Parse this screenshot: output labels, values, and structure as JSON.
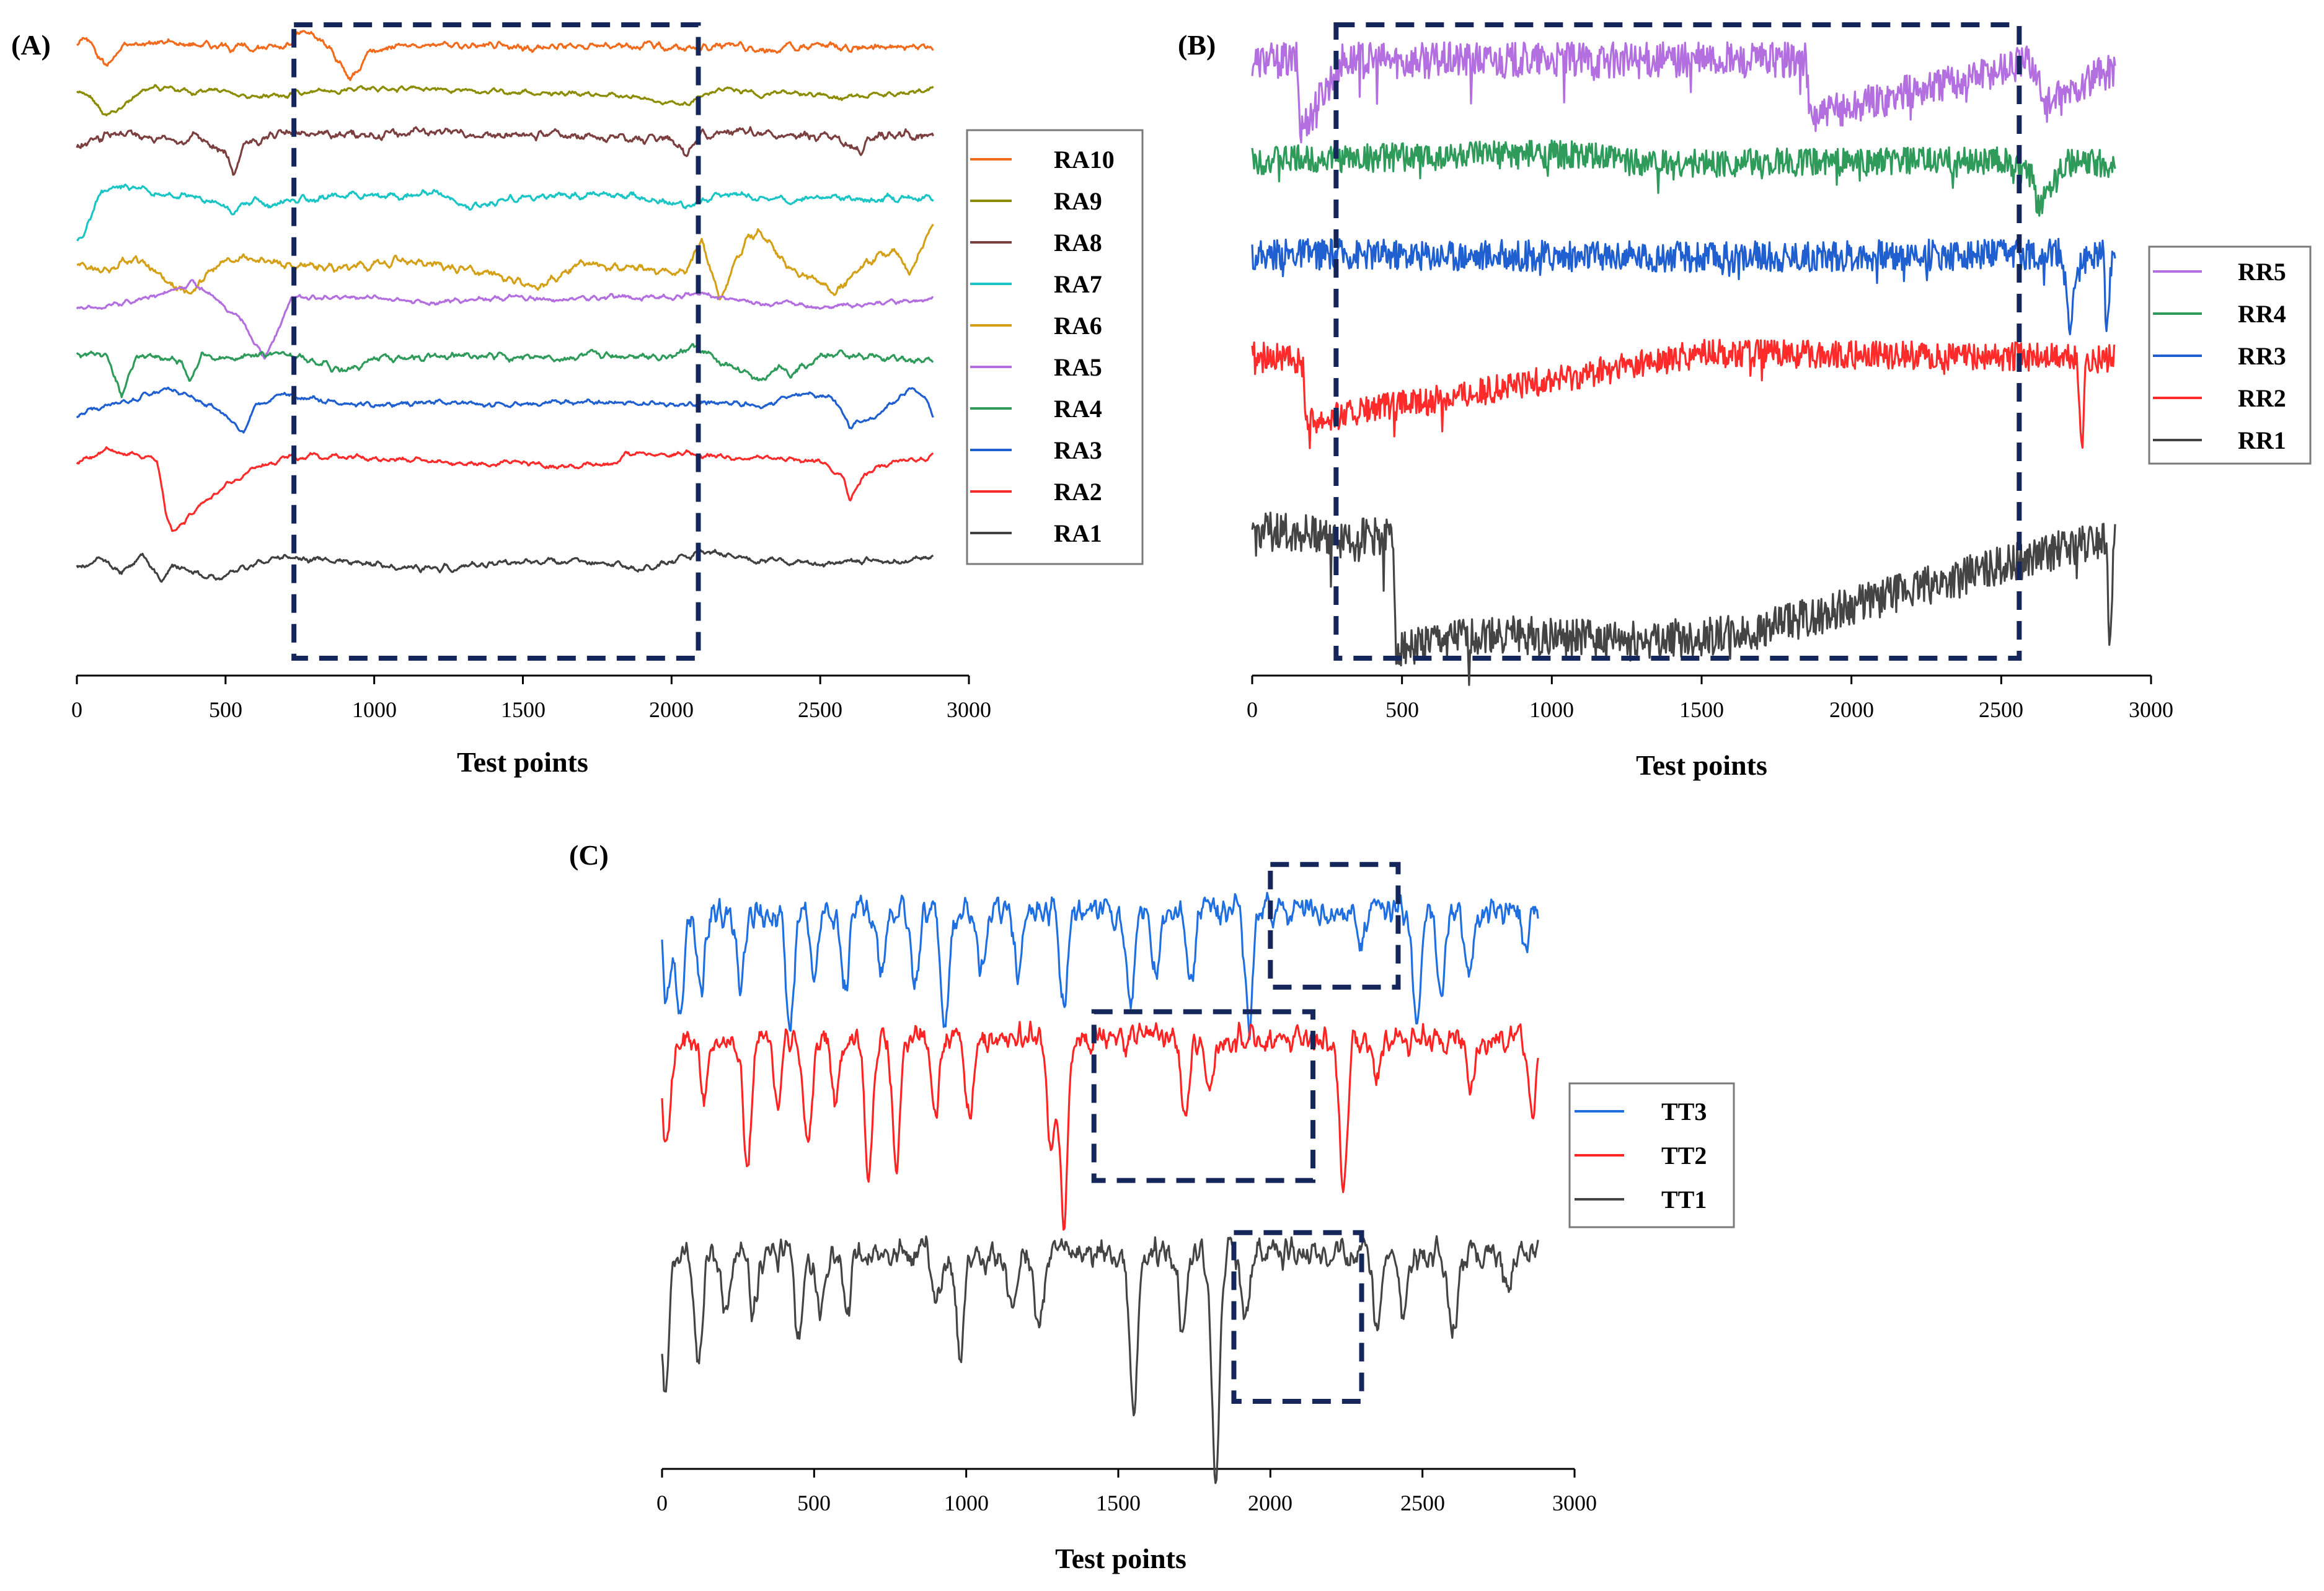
{
  "chart_data": [
    {
      "panel": "(A)",
      "type": "line",
      "xlabel": "Test points",
      "ylabel": "",
      "xlim": [
        0,
        3000
      ],
      "xticks": [
        "0",
        "500",
        "1000",
        "1500",
        "2000",
        "2500",
        "3000"
      ],
      "ylim": [
        -1,
        10
      ],
      "highlight_x": [
        730,
        2090
      ],
      "legend_position": "right",
      "legend": [
        "RA10",
        "RA9",
        "RA8",
        "RA7",
        "RA6",
        "RA5",
        "RA4",
        "RA3",
        "RA2",
        "RA1"
      ],
      "series": [
        {
          "name": "RA10",
          "color": "#f26b1d",
          "baseline": 9.6,
          "noise": 0.07,
          "x": [
            0,
            30,
            100,
            160,
            300,
            450,
            600,
            700,
            760,
            850,
            920,
            980,
            1100,
            1300,
            1500,
            1700,
            1900,
            2050,
            2100,
            2200,
            2300,
            2400,
            2500,
            2600,
            2700,
            2880
          ],
          "values": [
            9.6,
            9.75,
            9.25,
            9.6,
            9.65,
            9.6,
            9.55,
            9.6,
            9.85,
            9.55,
            9.0,
            9.5,
            9.6,
            9.6,
            9.55,
            9.6,
            9.6,
            9.55,
            9.55,
            9.6,
            9.5,
            9.55,
            9.6,
            9.55,
            9.6,
            9.55
          ]
        },
        {
          "name": "RA9",
          "color": "#8c8c00",
          "baseline": 8.85,
          "noise": 0.05,
          "x": [
            0,
            50,
            100,
            150,
            250,
            400,
            500,
            600,
            800,
            1000,
            1200,
            1500,
            1800,
            2050,
            2100,
            2200,
            2300,
            2400,
            2600,
            2880
          ],
          "values": [
            8.85,
            8.7,
            8.4,
            8.55,
            8.9,
            8.8,
            8.85,
            8.7,
            8.8,
            8.85,
            8.85,
            8.8,
            8.75,
            8.6,
            8.75,
            8.85,
            8.75,
            8.8,
            8.7,
            8.85
          ]
        },
        {
          "name": "RA8",
          "color": "#7b3f3f",
          "baseline": 8.1,
          "noise": 0.09,
          "x": [
            0,
            100,
            200,
            300,
            400,
            500,
            530,
            560,
            650,
            800,
            1000,
            1200,
            1400,
            1600,
            1800,
            2000,
            2050,
            2100,
            2200,
            2400,
            2550,
            2620,
            2700,
            2880
          ],
          "values": [
            7.85,
            8.05,
            8.1,
            7.95,
            8.0,
            7.8,
            7.4,
            7.9,
            8.05,
            8.1,
            8.05,
            8.15,
            8.05,
            8.1,
            8.0,
            8.05,
            7.75,
            8.1,
            8.1,
            8.05,
            8.0,
            7.75,
            8.05,
            8.05
          ]
        },
        {
          "name": "RA7",
          "color": "#1bc5c5",
          "baseline": 7.0,
          "noise": 0.07,
          "x": [
            0,
            30,
            80,
            150,
            300,
            450,
            530,
            600,
            650,
            700,
            900,
            1100,
            1200,
            1300,
            1500,
            1700,
            1900,
            2050,
            2100,
            2200,
            2400,
            2500,
            2600,
            2880
          ],
          "values": [
            6.2,
            6.4,
            7.1,
            7.2,
            7.05,
            6.95,
            6.75,
            7.0,
            6.8,
            6.95,
            7.05,
            7.0,
            7.1,
            6.85,
            7.0,
            7.05,
            7.0,
            6.85,
            6.95,
            7.05,
            6.95,
            7.0,
            6.95,
            7.0
          ]
        },
        {
          "name": "RA6",
          "color": "#d4a017",
          "baseline": 5.85,
          "noise": 0.08,
          "x": [
            0,
            100,
            200,
            300,
            380,
            450,
            550,
            700,
            900,
            1100,
            1300,
            1500,
            1550,
            1700,
            1900,
            2050,
            2100,
            2160,
            2250,
            2300,
            2400,
            2550,
            2650,
            2750,
            2800,
            2870
          ],
          "values": [
            5.85,
            5.75,
            6.0,
            5.6,
            5.3,
            5.8,
            6.0,
            5.85,
            5.8,
            5.9,
            5.8,
            5.55,
            5.45,
            5.85,
            5.8,
            5.7,
            6.3,
            5.25,
            6.3,
            6.4,
            5.8,
            5.4,
            5.85,
            6.1,
            5.75,
            6.5
          ]
        },
        {
          "name": "RA5",
          "color": "#b36ee0",
          "baseline": 5.2,
          "noise": 0.05,
          "x": [
            0,
            150,
            300,
            390,
            460,
            560,
            630,
            700,
            720,
            800,
            1000,
            1200,
            1400,
            1600,
            1800,
            2000,
            2100,
            2300,
            2500,
            2880
          ],
          "values": [
            5.1,
            5.2,
            5.35,
            5.55,
            5.3,
            4.9,
            4.25,
            5.0,
            5.3,
            5.3,
            5.3,
            5.2,
            5.3,
            5.25,
            5.3,
            5.3,
            5.35,
            5.2,
            5.15,
            5.25
          ]
        },
        {
          "name": "RA4",
          "color": "#2e9b5a",
          "baseline": 4.3,
          "noise": 0.07,
          "x": [
            0,
            100,
            150,
            200,
            280,
            350,
            380,
            420,
            500,
            700,
            800,
            900,
            1000,
            1200,
            1400,
            1600,
            1800,
            2000,
            2070,
            2200,
            2300,
            2360,
            2400,
            2500,
            2600,
            2880
          ],
          "values": [
            4.35,
            4.3,
            3.65,
            4.3,
            4.25,
            4.2,
            3.85,
            4.3,
            4.25,
            4.35,
            4.2,
            4.0,
            4.25,
            4.3,
            4.3,
            4.25,
            4.3,
            4.3,
            4.45,
            4.1,
            3.85,
            4.15,
            4.0,
            4.3,
            4.3,
            4.2
          ]
        },
        {
          "name": "RA3",
          "color": "#1f5fd0",
          "baseline": 3.5,
          "noise": 0.05,
          "x": [
            0,
            100,
            200,
            300,
            450,
            500,
            560,
            600,
            700,
            800,
            1000,
            1200,
            1400,
            1600,
            1800,
            2000,
            2100,
            2300,
            2450,
            2550,
            2600,
            2700,
            2800,
            2850,
            2880
          ],
          "values": [
            3.3,
            3.45,
            3.55,
            3.75,
            3.45,
            3.3,
            3.0,
            3.45,
            3.65,
            3.55,
            3.45,
            3.5,
            3.45,
            3.5,
            3.5,
            3.45,
            3.5,
            3.45,
            3.65,
            3.55,
            3.1,
            3.3,
            3.75,
            3.6,
            3.3
          ]
        },
        {
          "name": "RA2",
          "color": "#ff2a2a",
          "baseline": 2.55,
          "noise": 0.05,
          "x": [
            0,
            100,
            200,
            270,
            300,
            320,
            450,
            600,
            700,
            800,
            1000,
            1200,
            1400,
            1500,
            1600,
            1800,
            1850,
            1900,
            2000,
            2050,
            2100,
            2300,
            2500,
            2580,
            2600,
            2650,
            2750,
            2880
          ],
          "values": [
            2.45,
            2.7,
            2.6,
            2.5,
            1.6,
            1.3,
            1.9,
            2.4,
            2.55,
            2.6,
            2.55,
            2.5,
            2.45,
            2.5,
            2.4,
            2.45,
            2.65,
            2.6,
            2.6,
            2.65,
            2.6,
            2.55,
            2.5,
            2.2,
            1.8,
            2.3,
            2.5,
            2.55
          ]
        },
        {
          "name": "RA1",
          "color": "#404040",
          "baseline": 0.8,
          "noise": 0.06,
          "x": [
            0,
            80,
            150,
            220,
            280,
            320,
            400,
            480,
            550,
            700,
            900,
            1100,
            1200,
            1400,
            1600,
            1800,
            1900,
            2000,
            2100,
            2300,
            2500,
            2700,
            2880
          ],
          "values": [
            0.65,
            0.85,
            0.6,
            0.9,
            0.45,
            0.75,
            0.6,
            0.5,
            0.7,
            0.85,
            0.8,
            0.7,
            0.65,
            0.75,
            0.8,
            0.75,
            0.65,
            0.8,
            0.95,
            0.8,
            0.75,
            0.8,
            0.85
          ]
        }
      ]
    },
    {
      "panel": "(B)",
      "type": "line",
      "xlabel": "Test points",
      "ylabel": "",
      "xlim": [
        0,
        3000
      ],
      "xticks": [
        "0",
        "500",
        "1000",
        "1500",
        "2000",
        "2500",
        "3000"
      ],
      "ylim": [
        0,
        10
      ],
      "highlight_x": [
        280,
        2560
      ],
      "legend_position": "right",
      "legend": [
        "RR5",
        "RR4",
        "RR3",
        "RR2",
        "RR1"
      ],
      "series": [
        {
          "name": "RR5",
          "color": "#b36ee0",
          "baseline": 9.4,
          "noise": 0.28,
          "spike_depth": 1.2,
          "x": [
            0,
            150,
            160,
            300,
            1850,
            1860,
            2600,
            2650,
            2880
          ],
          "values": [
            9.4,
            9.4,
            8.3,
            9.4,
            9.4,
            8.5,
            9.4,
            8.7,
            9.3
          ]
        },
        {
          "name": "RR4",
          "color": "#2e9b5a",
          "baseline": 7.85,
          "noise": 0.22,
          "spike_depth": 0.6,
          "x": [
            0,
            1000,
            1400,
            2500,
            2600,
            2620,
            2700,
            2880
          ],
          "values": [
            7.85,
            7.95,
            7.8,
            7.85,
            7.6,
            7.1,
            7.8,
            7.8
          ]
        },
        {
          "name": "RR3",
          "color": "#1f5fd0",
          "baseline": 6.4,
          "noise": 0.24,
          "spike_depth": 0.7,
          "x": [
            0,
            1600,
            2700,
            2730,
            2760,
            2840,
            2850,
            2880
          ],
          "values": [
            6.4,
            6.35,
            6.4,
            5.3,
            6.2,
            6.5,
            5.35,
            6.7
          ]
        },
        {
          "name": "RR2",
          "color": "#ff2a2a",
          "baseline": 4.85,
          "noise": 0.22,
          "spike_depth": 0.7,
          "x": [
            0,
            170,
            180,
            1500,
            2750,
            2770,
            2780,
            2880
          ],
          "values": [
            4.9,
            4.7,
            3.8,
            4.85,
            4.8,
            3.4,
            4.7,
            4.8
          ]
        },
        {
          "name": "RR1",
          "color": "#444444",
          "baseline": 2.1,
          "noise": 0.3,
          "spike_depth": 1.3,
          "x": [
            0,
            470,
            480,
            820,
            1250,
            1650,
            2850,
            2860,
            2880
          ],
          "values": [
            2.1,
            2.0,
            0.3,
            0.5,
            0.4,
            0.5,
            2.0,
            0.4,
            2.1
          ]
        }
      ]
    },
    {
      "panel": "(C)",
      "type": "line",
      "xlabel": "Test points",
      "ylabel": "",
      "xlim": [
        0,
        3000
      ],
      "xticks": [
        "0",
        "500",
        "1000",
        "1500",
        "2000",
        "2500",
        "3000"
      ],
      "ylim": [
        0,
        10
      ],
      "highlight_boxes": [
        {
          "series": "TT3",
          "x": [
            2000,
            2420
          ],
          "y": [
            7.75,
            9.75
          ]
        },
        {
          "series": "TT2",
          "x": [
            1420,
            2140
          ],
          "y": [
            4.6,
            7.35
          ]
        },
        {
          "series": "TT1",
          "x": [
            1880,
            2300
          ],
          "y": [
            1.0,
            3.75
          ]
        }
      ],
      "legend_position": "right",
      "legend": [
        "TT3",
        "TT2",
        "TT1"
      ],
      "series": [
        {
          "name": "TT3",
          "color": "#1f6fe0",
          "baseline": 9.0,
          "noise": 0.2,
          "dips": [
            [
              15,
              1.5
            ],
            [
              60,
              1.7
            ],
            [
              130,
              1.3
            ],
            [
              260,
              1.2
            ],
            [
              420,
              2.0
            ],
            [
              500,
              1.1
            ],
            [
              600,
              1.3
            ],
            [
              720,
              1.0
            ],
            [
              830,
              1.2
            ],
            [
              930,
              2.0
            ],
            [
              1050,
              1.0
            ],
            [
              1170,
              1.1
            ],
            [
              1320,
              1.7
            ],
            [
              1540,
              1.6
            ],
            [
              1620,
              1.1
            ],
            [
              1740,
              1.2
            ],
            [
              1930,
              1.9
            ],
            [
              2300,
              0.6
            ],
            [
              2480,
              1.8
            ],
            [
              2560,
              1.4
            ],
            [
              2650,
              1.1
            ],
            [
              2840,
              0.5
            ]
          ]
        },
        {
          "name": "TT2",
          "color": "#ff2424",
          "baseline": 6.9,
          "noise": 0.18,
          "dips": [
            [
              15,
              1.9
            ],
            [
              140,
              1.0
            ],
            [
              280,
              2.1
            ],
            [
              380,
              1.0
            ],
            [
              480,
              1.8
            ],
            [
              570,
              1.0
            ],
            [
              680,
              2.2
            ],
            [
              770,
              2.0
            ],
            [
              900,
              1.2
            ],
            [
              1010,
              1.3
            ],
            [
              1280,
              1.8
            ],
            [
              1320,
              2.9
            ],
            [
              1720,
              1.3
            ],
            [
              1800,
              0.9
            ],
            [
              2240,
              2.4
            ],
            [
              2350,
              0.6
            ],
            [
              2660,
              0.7
            ],
            [
              2860,
              1.2
            ]
          ]
        },
        {
          "name": "TT1",
          "color": "#444444",
          "baseline": 3.4,
          "noise": 0.2,
          "dips": [
            [
              10,
              2.3
            ],
            [
              120,
              1.8
            ],
            [
              210,
              1.0
            ],
            [
              300,
              1.0
            ],
            [
              450,
              1.4
            ],
            [
              520,
              1.0
            ],
            [
              610,
              1.0
            ],
            [
              900,
              0.9
            ],
            [
              980,
              1.7
            ],
            [
              1150,
              0.9
            ],
            [
              1240,
              1.3
            ],
            [
              1550,
              2.6
            ],
            [
              1710,
              1.1
            ],
            [
              1820,
              3.8
            ],
            [
              1920,
              1.0
            ],
            [
              2350,
              1.2
            ],
            [
              2440,
              1.0
            ],
            [
              2600,
              1.4
            ],
            [
              2780,
              0.7
            ]
          ]
        }
      ]
    }
  ]
}
